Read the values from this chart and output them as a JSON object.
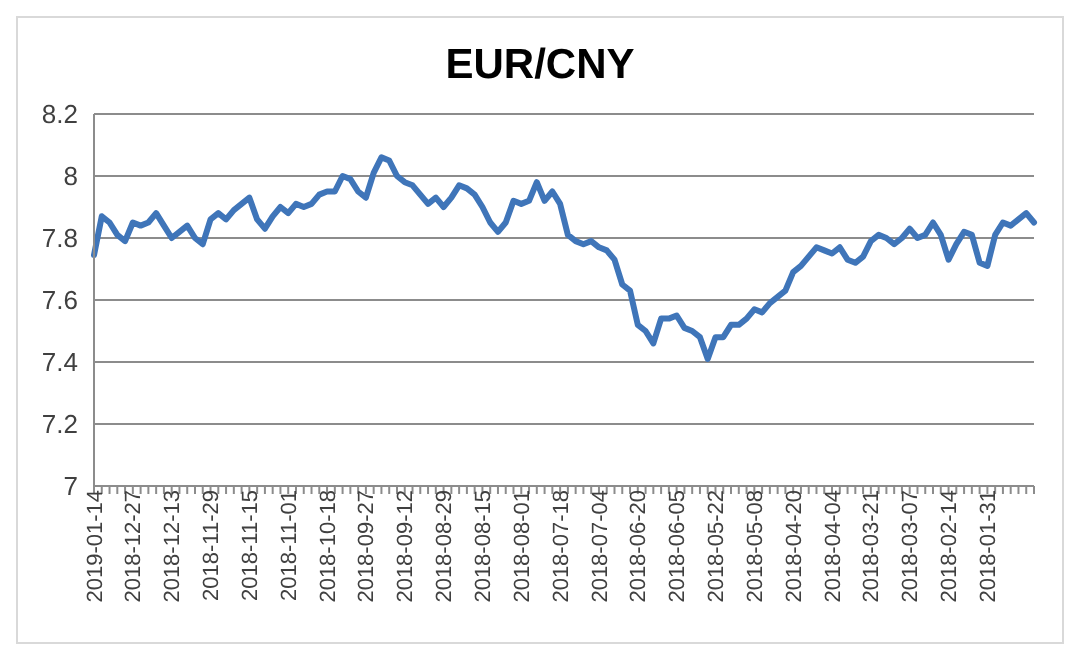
{
  "chart_data": {
    "type": "line",
    "title": "EUR/CNY",
    "categories": [
      "2019-01-14",
      null,
      null,
      null,
      null,
      "2018-12-27",
      null,
      null,
      null,
      null,
      "2018-12-13",
      null,
      null,
      null,
      null,
      "2018-11-29",
      null,
      null,
      null,
      null,
      "2018-11-15",
      null,
      null,
      null,
      null,
      "2018-11-01",
      null,
      null,
      null,
      null,
      "2018-10-18",
      null,
      null,
      null,
      null,
      "2018-09-27",
      null,
      null,
      null,
      null,
      "2018-09-12",
      null,
      null,
      null,
      null,
      "2018-08-29",
      null,
      null,
      null,
      null,
      "2018-08-15",
      null,
      null,
      null,
      null,
      "2018-08-01",
      null,
      null,
      null,
      null,
      "2018-07-18",
      null,
      null,
      null,
      null,
      "2018-07-04",
      null,
      null,
      null,
      null,
      "2018-06-20",
      null,
      null,
      null,
      null,
      "2018-06-05",
      null,
      null,
      null,
      null,
      "2018-05-22",
      null,
      null,
      null,
      null,
      "2018-05-08",
      null,
      null,
      null,
      null,
      "2018-04-20",
      null,
      null,
      null,
      null,
      "2018-04-04",
      null,
      null,
      null,
      null,
      "2018-03-21",
      null,
      null,
      null,
      null,
      "2018-03-07",
      null,
      null,
      null,
      null,
      "2018-02-14",
      null,
      null,
      null,
      null,
      "2018-01-31",
      null,
      null,
      null,
      null,
      null,
      null
    ],
    "series": [
      {
        "color": "#3f75b9",
        "values": [
          7.745,
          7.87,
          7.85,
          7.81,
          7.79,
          7.85,
          7.84,
          7.85,
          7.88,
          7.84,
          7.8,
          7.82,
          7.84,
          7.8,
          7.78,
          7.86,
          7.88,
          7.86,
          7.89,
          7.91,
          7.93,
          7.86,
          7.83,
          7.87,
          7.9,
          7.88,
          7.91,
          7.9,
          7.91,
          7.94,
          7.95,
          7.95,
          8.0,
          7.99,
          7.95,
          7.93,
          8.01,
          8.06,
          8.05,
          8.0,
          7.98,
          7.97,
          7.94,
          7.91,
          7.93,
          7.9,
          7.93,
          7.97,
          7.96,
          7.94,
          7.9,
          7.85,
          7.82,
          7.85,
          7.92,
          7.91,
          7.92,
          7.98,
          7.92,
          7.95,
          7.91,
          7.81,
          7.79,
          7.78,
          7.79,
          7.77,
          7.76,
          7.73,
          7.65,
          7.63,
          7.52,
          7.5,
          7.46,
          7.54,
          7.54,
          7.55,
          7.51,
          7.5,
          7.48,
          7.41,
          7.48,
          7.48,
          7.52,
          7.52,
          7.54,
          7.57,
          7.56,
          7.59,
          7.61,
          7.63,
          7.69,
          7.71,
          7.74,
          7.77,
          7.76,
          7.75,
          7.77,
          7.73,
          7.72,
          7.74,
          7.79,
          7.81,
          7.8,
          7.78,
          7.8,
          7.83,
          7.8,
          7.81,
          7.85,
          7.81,
          7.73,
          7.78,
          7.82,
          7.81,
          7.72,
          7.71,
          7.81,
          7.85,
          7.84,
          7.86,
          7.88,
          7.85
        ]
      }
    ],
    "ylim": [
      7,
      8.2
    ],
    "yticks": [
      7,
      7.2,
      7.4,
      7.6,
      7.8,
      8,
      8.2
    ],
    "grid": "y",
    "legend": false,
    "marker": "none",
    "line_style": "solid"
  }
}
